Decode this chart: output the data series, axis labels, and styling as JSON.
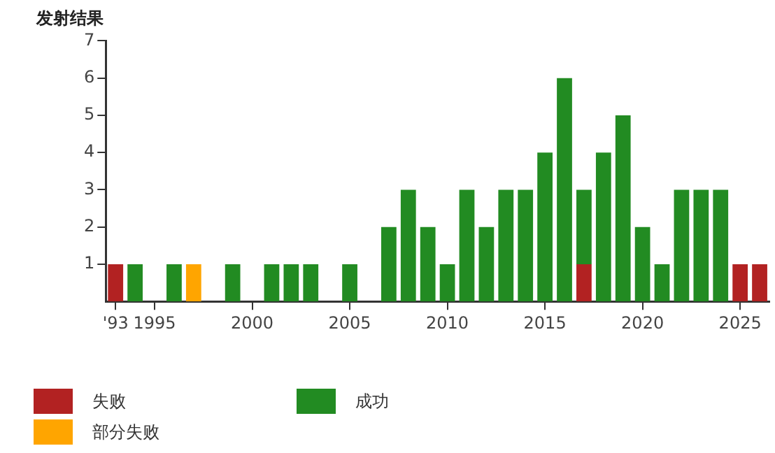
{
  "chart_data": {
    "type": "bar",
    "stacked": true,
    "ylabel": "发射结果",
    "categories": [
      "'93",
      null,
      "1995",
      null,
      null,
      null,
      null,
      "2000",
      null,
      null,
      null,
      null,
      "2005",
      null,
      null,
      null,
      null,
      "2010",
      null,
      null,
      null,
      null,
      "2015",
      null,
      null,
      null,
      null,
      "2020",
      null,
      null,
      null,
      null,
      "2025",
      null
    ],
    "series": [
      {
        "name": "失败",
        "color": "#b22222",
        "values": [
          1,
          null,
          null,
          null,
          null,
          null,
          null,
          null,
          null,
          null,
          null,
          null,
          null,
          null,
          null,
          null,
          null,
          null,
          null,
          null,
          null,
          null,
          null,
          null,
          1,
          null,
          null,
          null,
          null,
          null,
          null,
          null,
          1,
          1
        ]
      },
      {
        "name": "部分失败",
        "color": "#ffa500",
        "values": [
          null,
          null,
          null,
          null,
          1,
          null,
          null,
          null,
          null,
          null,
          null,
          null,
          null,
          null,
          null,
          null,
          null,
          null,
          null,
          null,
          null,
          null,
          null,
          null,
          null,
          null,
          null,
          null,
          null,
          null,
          null,
          null,
          null,
          null
        ]
      },
      {
        "name": "成功",
        "color": "#228b22",
        "values": [
          null,
          1,
          null,
          1,
          null,
          null,
          1,
          null,
          1,
          1,
          1,
          null,
          1,
          null,
          2,
          3,
          2,
          1,
          3,
          2,
          3,
          3,
          4,
          6,
          2,
          4,
          5,
          2,
          1,
          3,
          3,
          3,
          null,
          null
        ]
      }
    ],
    "ylim": [
      0,
      7
    ],
    "yticks": [
      1,
      2,
      3,
      4,
      5,
      6,
      7
    ],
    "grid": false,
    "legend": "bottom left"
  }
}
